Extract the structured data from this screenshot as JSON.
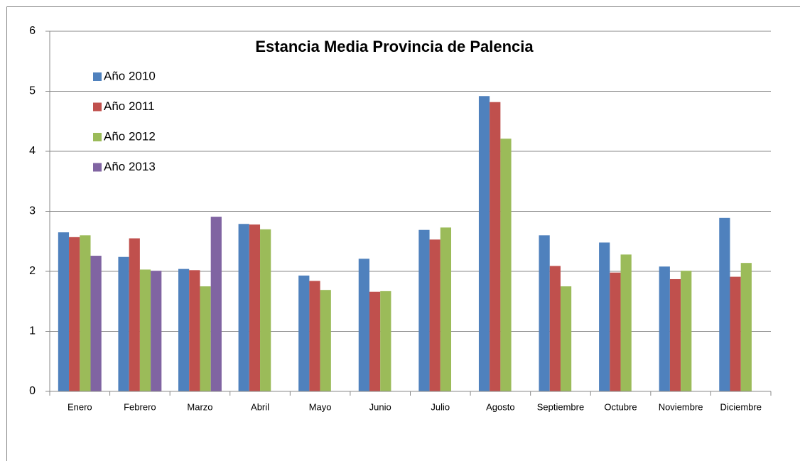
{
  "chart_data": {
    "type": "bar",
    "title": "Estancia Media Provincia de Palencia",
    "categories": [
      "Enero",
      "Febrero",
      "Marzo",
      "Abril",
      "Mayo",
      "Junio",
      "Julio",
      "Agosto",
      "Septiembre",
      "Octubre",
      "Noviembre",
      "Diciembre"
    ],
    "series": [
      {
        "name": "Año 2010",
        "color": "#4f81bd",
        "values": [
          2.65,
          2.24,
          2.04,
          2.79,
          1.93,
          2.21,
          2.69,
          4.92,
          2.6,
          2.48,
          2.08,
          2.89
        ]
      },
      {
        "name": "Año 2011",
        "color": "#c0504d",
        "values": [
          2.57,
          2.55,
          2.02,
          2.78,
          1.84,
          1.66,
          2.53,
          4.82,
          2.09,
          1.98,
          1.87,
          1.91
        ]
      },
      {
        "name": "Año 2012",
        "color": "#9bbb59",
        "values": [
          2.6,
          2.03,
          1.75,
          2.7,
          1.69,
          1.67,
          2.73,
          4.21,
          1.75,
          2.28,
          2.01,
          2.14
        ]
      },
      {
        "name": "Año 2013",
        "color": "#8064a2",
        "values": [
          2.26,
          2.01,
          2.91,
          null,
          null,
          null,
          null,
          null,
          null,
          null,
          null,
          null
        ]
      }
    ],
    "ylim": [
      0,
      6
    ],
    "yticks": [
      0,
      1,
      2,
      3,
      4,
      5,
      6
    ],
    "grid": true,
    "legend": "upper left"
  }
}
